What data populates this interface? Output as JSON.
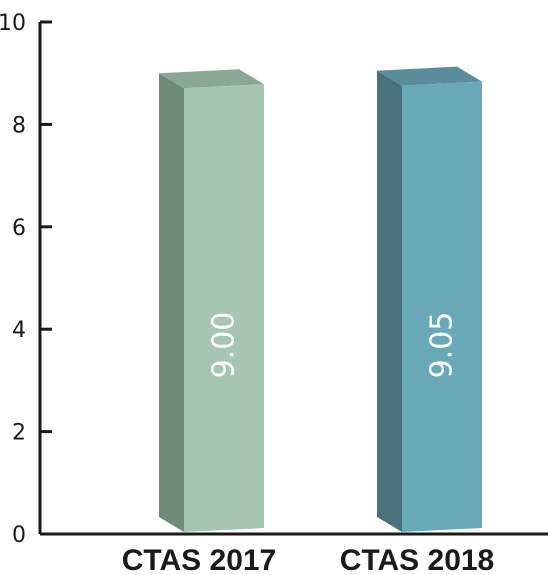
{
  "chart_data": {
    "type": "bar",
    "categories": [
      "CTAS 2017",
      "CTAS 2018"
    ],
    "values": [
      9.0,
      9.05
    ],
    "data_labels": [
      "9.00",
      "9.05"
    ],
    "ylim": [
      0,
      10
    ],
    "yticks": [
      0,
      2,
      4,
      6,
      8,
      10
    ],
    "ytick_labels": [
      "0",
      "2",
      "4",
      "6",
      "8",
      "10"
    ],
    "title": "",
    "xlabel": "",
    "ylabel": "",
    "grid": false,
    "style": "3d-bar",
    "colors": [
      {
        "front": "#a6c5b3",
        "side": "#6f8a78",
        "top": "#8aa895"
      },
      {
        "front": "#69a8b6",
        "side": "#4b727c",
        "top": "#5a8c99"
      }
    ]
  }
}
